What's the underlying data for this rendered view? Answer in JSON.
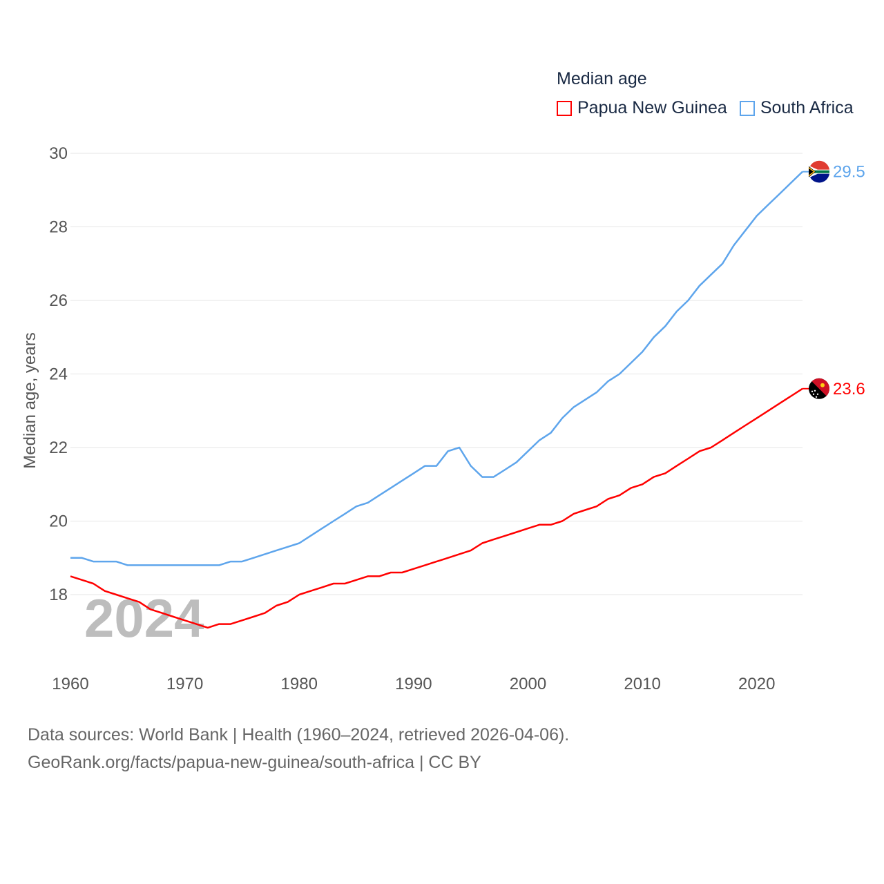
{
  "legend": {
    "title": "Median age",
    "items": [
      {
        "name": "Papua New Guinea",
        "color": "#ff0000"
      },
      {
        "name": "South Africa",
        "color": "#5ea5ec"
      }
    ]
  },
  "footer": {
    "line1": "Data sources: World Bank | Health (1960–2024, retrieved 2026-04-06).",
    "line2": "GeoRank.org/facts/papua-new-guinea/south-africa | CC BY"
  },
  "chart_data": {
    "type": "line",
    "title": "Median age",
    "ylabel": "Median age, years",
    "xlabel": "",
    "watermark": "2024",
    "xlim": [
      1960,
      2024
    ],
    "ylim": [
      16.2,
      30
    ],
    "xticks": [
      1960,
      1970,
      1980,
      1990,
      2000,
      2010,
      2020
    ],
    "yticks": [
      18,
      20,
      22,
      24,
      26,
      28,
      30
    ],
    "grid": true,
    "legend_position": "top-right",
    "x_start": 1960,
    "series": [
      {
        "name": "Papua New Guinea",
        "color": "#ff0000",
        "end_label": "23.6",
        "values": [
          18.5,
          18.4,
          18.3,
          18.1,
          18.0,
          17.9,
          17.8,
          17.6,
          17.5,
          17.4,
          17.3,
          17.2,
          17.1,
          17.2,
          17.2,
          17.3,
          17.4,
          17.5,
          17.7,
          17.8,
          18.0,
          18.1,
          18.2,
          18.3,
          18.3,
          18.4,
          18.5,
          18.5,
          18.6,
          18.6,
          18.7,
          18.8,
          18.9,
          19.0,
          19.1,
          19.2,
          19.4,
          19.5,
          19.6,
          19.7,
          19.8,
          19.9,
          19.9,
          20.0,
          20.2,
          20.3,
          20.4,
          20.6,
          20.7,
          20.9,
          21.0,
          21.2,
          21.3,
          21.5,
          21.7,
          21.9,
          22.0,
          22.2,
          22.4,
          22.6,
          22.8,
          23.0,
          23.2,
          23.4,
          23.6
        ]
      },
      {
        "name": "South Africa",
        "color": "#5ea5ec",
        "end_label": "29.5",
        "values": [
          19.0,
          19.0,
          18.9,
          18.9,
          18.9,
          18.8,
          18.8,
          18.8,
          18.8,
          18.8,
          18.8,
          18.8,
          18.8,
          18.8,
          18.9,
          18.9,
          19.0,
          19.1,
          19.2,
          19.3,
          19.4,
          19.6,
          19.8,
          20.0,
          20.2,
          20.4,
          20.5,
          20.7,
          20.9,
          21.1,
          21.3,
          21.5,
          21.5,
          21.9,
          22.0,
          21.5,
          21.2,
          21.2,
          21.4,
          21.6,
          21.9,
          22.2,
          22.4,
          22.8,
          23.1,
          23.3,
          23.5,
          23.8,
          24.0,
          24.3,
          24.6,
          25.0,
          25.3,
          25.7,
          26.0,
          26.4,
          26.7,
          27.0,
          27.5,
          27.9,
          28.3,
          28.6,
          28.9,
          29.2,
          29.5
        ]
      }
    ]
  }
}
